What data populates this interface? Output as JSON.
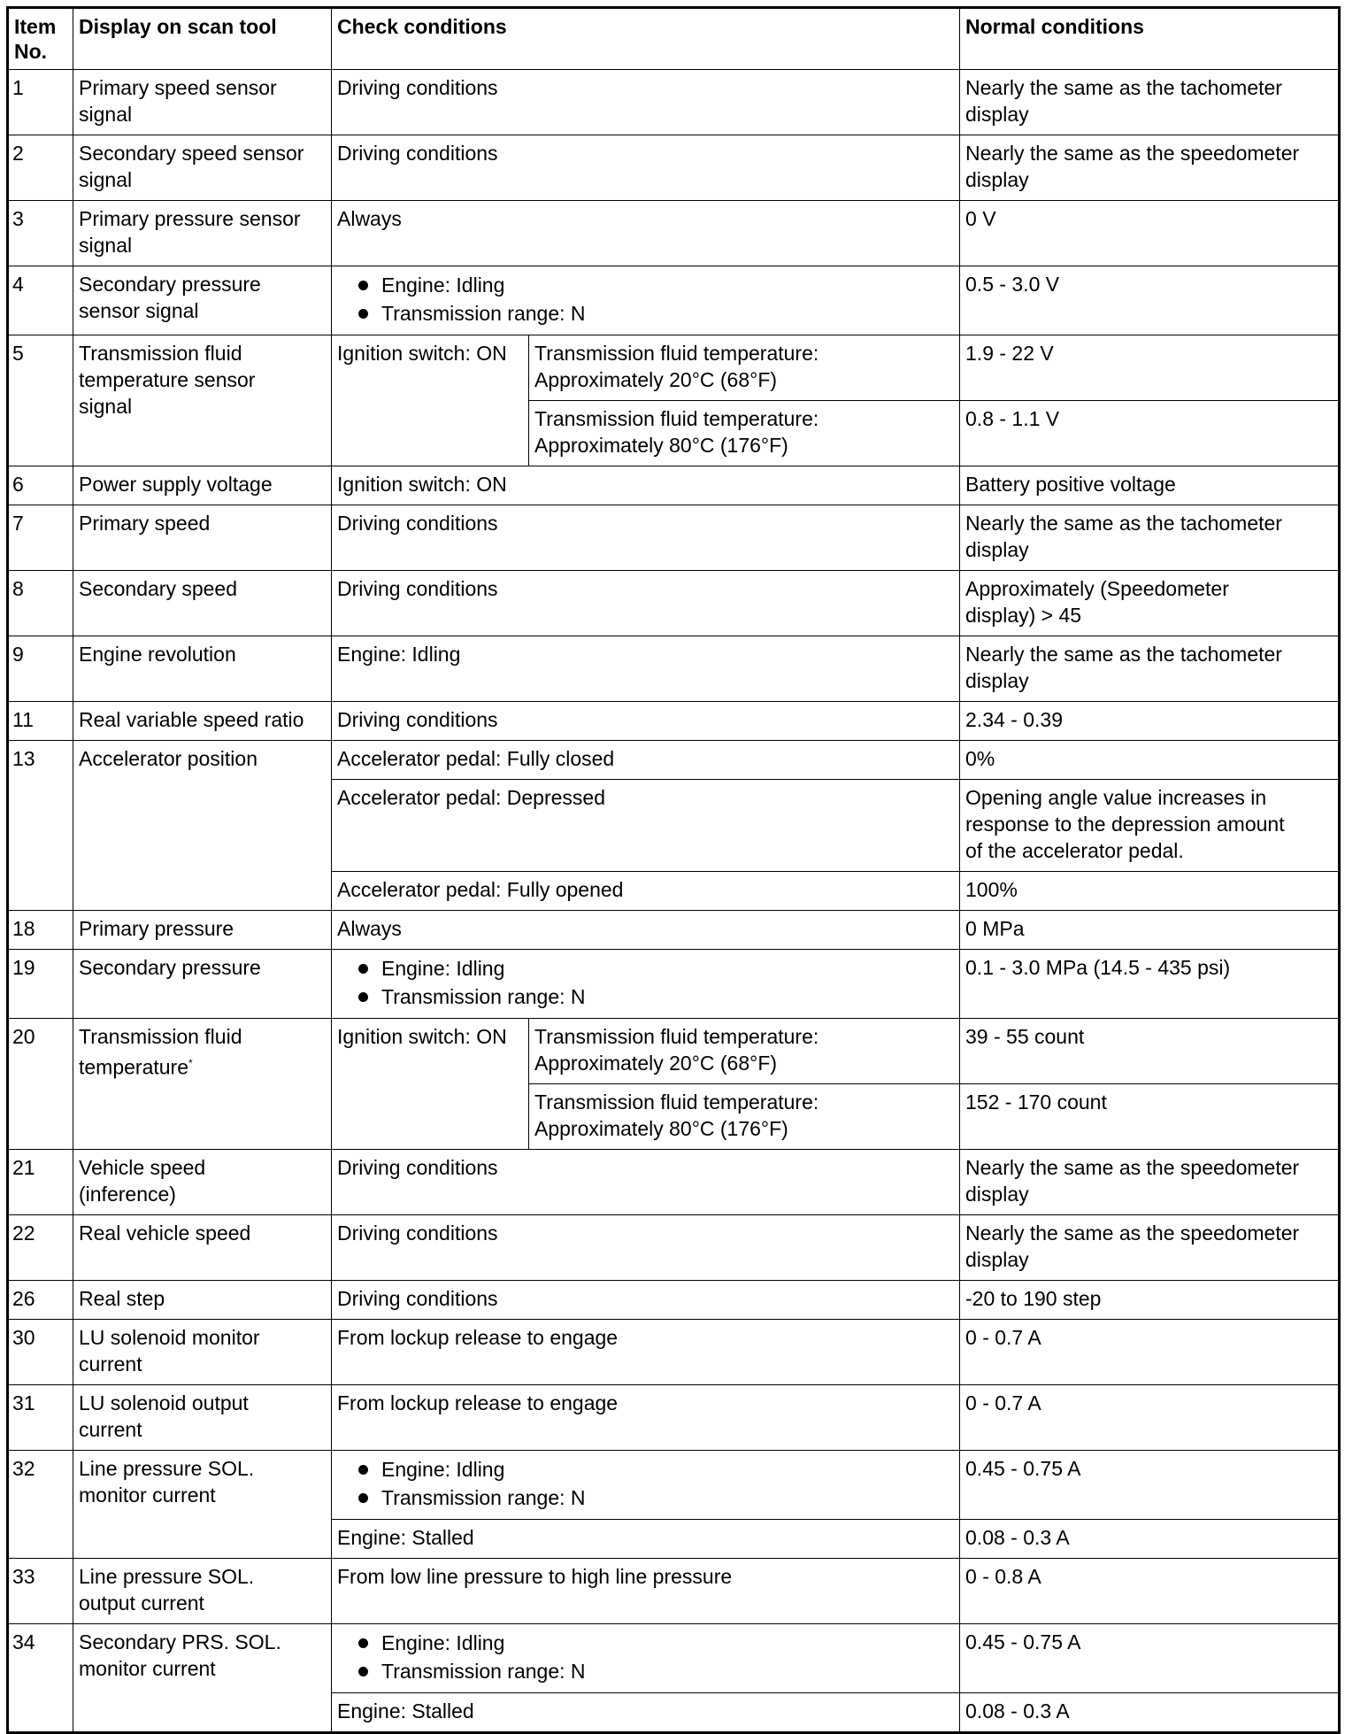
{
  "headers": {
    "item": "Item\nNo.",
    "display": "Display on scan tool",
    "check": "Check conditions",
    "normal": "Normal conditions"
  },
  "rows": [
    {
      "item": "1",
      "display": "Primary speed sensor\nsignal",
      "conditions": [
        {
          "check": "Driving conditions",
          "normal": "Nearly the same as the tachometer\ndisplay"
        }
      ]
    },
    {
      "item": "2",
      "display": "Secondary speed sensor\nsignal",
      "conditions": [
        {
          "check": "Driving conditions",
          "normal": "Nearly the same as the speedometer\ndisplay"
        }
      ]
    },
    {
      "item": "3",
      "display": "Primary pressure sensor\nsignal",
      "conditions": [
        {
          "check": "Always",
          "normal": "0 V"
        }
      ]
    },
    {
      "item": "4",
      "display": "Secondary pressure\nsensor signal",
      "conditions": [
        {
          "bullets": [
            "Engine: Idling",
            "Transmission range: N"
          ],
          "normal": "0.5 - 3.0 V"
        }
      ]
    },
    {
      "item": "5",
      "display": "Transmission fluid\ntemperature sensor\nsignal",
      "conditions": [
        {
          "group": "Ignition switch: ON",
          "subs": [
            {
              "check": "Transmission fluid temperature:\nApproximately 20°C (68°F)",
              "normal": "1.9 - 22 V"
            },
            {
              "check": "Transmission fluid temperature:\nApproximately 80°C (176°F)",
              "normal": "0.8 - 1.1 V"
            }
          ]
        }
      ]
    },
    {
      "item": "6",
      "display": "Power supply voltage",
      "conditions": [
        {
          "check": "Ignition switch: ON",
          "normal": "Battery positive voltage"
        }
      ]
    },
    {
      "item": "7",
      "display": "Primary speed",
      "conditions": [
        {
          "check": "Driving conditions",
          "normal": "Nearly the same as the tachometer\ndisplay"
        }
      ]
    },
    {
      "item": "8",
      "display": "Secondary speed",
      "conditions": [
        {
          "check": "Driving conditions",
          "normal": "Approximately (Speedometer\ndisplay) > 45"
        }
      ]
    },
    {
      "item": "9",
      "display": "Engine revolution",
      "conditions": [
        {
          "check": "Engine: Idling",
          "normal": "Nearly the same as the tachometer\ndisplay"
        }
      ]
    },
    {
      "item": "11",
      "display": "Real variable speed ratio",
      "conditions": [
        {
          "check": "Driving conditions",
          "normal": "2.34 - 0.39"
        }
      ]
    },
    {
      "item": "13",
      "display": "Accelerator position",
      "conditions": [
        {
          "check": "Accelerator pedal: Fully closed",
          "normal": "0%"
        },
        {
          "check": "Accelerator pedal: Depressed",
          "normal": "Opening angle value increases in\nresponse to the depression amount\nof the accelerator pedal."
        },
        {
          "check": "Accelerator pedal: Fully opened",
          "normal": "100%"
        }
      ]
    },
    {
      "item": "18",
      "display": "Primary pressure",
      "conditions": [
        {
          "check": "Always",
          "normal": "0 MPa"
        }
      ]
    },
    {
      "item": "19",
      "display": "Secondary pressure",
      "conditions": [
        {
          "bullets": [
            "Engine: Idling",
            "Transmission range: N"
          ],
          "normal": "0.1 - 3.0 MPa (14.5 - 435 psi)"
        }
      ]
    },
    {
      "item": "20",
      "display": "Transmission fluid\ntemperature",
      "display_sup": "*",
      "conditions": [
        {
          "group": "Ignition switch: ON",
          "subs": [
            {
              "check": "Transmission fluid temperature:\nApproximately 20°C (68°F)",
              "normal": "39 - 55 count"
            },
            {
              "check": "Transmission fluid temperature:\nApproximately 80°C (176°F)",
              "normal": "152 - 170 count"
            }
          ]
        }
      ]
    },
    {
      "item": "21",
      "display": "Vehicle speed\n(inference)",
      "conditions": [
        {
          "check": "Driving conditions",
          "normal": "Nearly the same as the speedometer\ndisplay"
        }
      ]
    },
    {
      "item": "22",
      "display": "Real vehicle speed",
      "conditions": [
        {
          "check": "Driving conditions",
          "normal": "Nearly the same as the speedometer\ndisplay"
        }
      ]
    },
    {
      "item": "26",
      "display": "Real step",
      "conditions": [
        {
          "check": "Driving conditions",
          "normal": "-20 to 190 step"
        }
      ]
    },
    {
      "item": "30",
      "display": "LU solenoid monitor\ncurrent",
      "conditions": [
        {
          "check": "From lockup release to engage",
          "normal": "0 - 0.7 A"
        }
      ]
    },
    {
      "item": "31",
      "display": "LU solenoid output\ncurrent",
      "conditions": [
        {
          "check": "From lockup release to engage",
          "normal": "0 - 0.7 A"
        }
      ]
    },
    {
      "item": "32",
      "display": "Line pressure SOL.\nmonitor current",
      "conditions": [
        {
          "bullets": [
            "Engine: Idling",
            "Transmission range: N"
          ],
          "normal": "0.45 - 0.75 A"
        },
        {
          "check": "Engine: Stalled",
          "normal": "0.08 - 0.3 A"
        }
      ]
    },
    {
      "item": "33",
      "display": "Line pressure SOL.\noutput current",
      "conditions": [
        {
          "check": "From low line pressure to high line pressure",
          "normal": "0 - 0.8 A"
        }
      ]
    },
    {
      "item": "34",
      "display": "Secondary PRS. SOL.\nmonitor current",
      "conditions": [
        {
          "bullets": [
            "Engine: Idling",
            "Transmission range: N"
          ],
          "normal": "0.45 - 0.75 A"
        },
        {
          "check": "Engine: Stalled",
          "normal": "0.08 - 0.3 A"
        }
      ]
    }
  ]
}
